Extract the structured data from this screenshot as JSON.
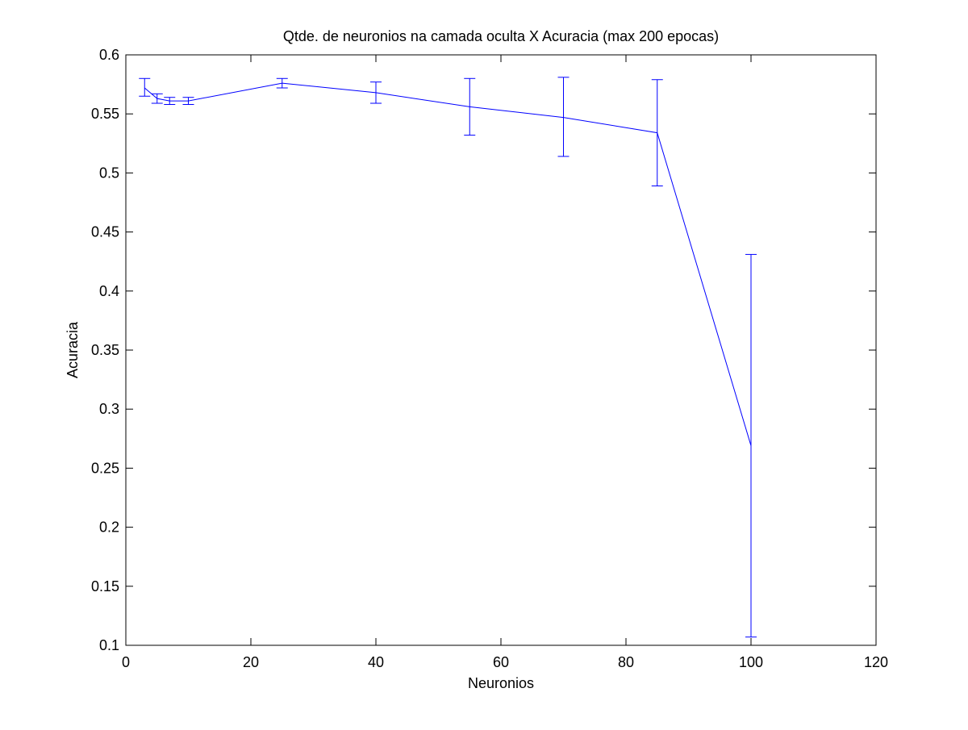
{
  "chart_data": {
    "type": "line",
    "title": "Qtde. de neuronios na camada oculta X Acuracia (max 200 epocas)",
    "xlabel": "Neuronios",
    "ylabel": "Acuracia",
    "xlim": [
      0,
      120
    ],
    "ylim": [
      0.1,
      0.6
    ],
    "xticks": [
      0,
      20,
      40,
      60,
      80,
      100,
      120
    ],
    "yticks": [
      0.1,
      0.15,
      0.2,
      0.25,
      0.3,
      0.35,
      0.4,
      0.45,
      0.5,
      0.55,
      0.6
    ],
    "xtick_labels": [
      "0",
      "20",
      "40",
      "60",
      "80",
      "100",
      "120"
    ],
    "ytick_labels": [
      "0.1",
      "0.15",
      "0.2",
      "0.25",
      "0.3",
      "0.35",
      "0.4",
      "0.45",
      "0.5",
      "0.55",
      "0.6"
    ],
    "grid": false,
    "series": [
      {
        "color": "#0000ff",
        "error_bars": true,
        "points": [
          {
            "x": 3,
            "y": 0.572,
            "lower": 0.565,
            "upper": 0.58
          },
          {
            "x": 5,
            "y": 0.563,
            "lower": 0.559,
            "upper": 0.567
          },
          {
            "x": 7,
            "y": 0.561,
            "lower": 0.558,
            "upper": 0.564
          },
          {
            "x": 10,
            "y": 0.561,
            "lower": 0.558,
            "upper": 0.564
          },
          {
            "x": 25,
            "y": 0.576,
            "lower": 0.572,
            "upper": 0.58
          },
          {
            "x": 40,
            "y": 0.568,
            "lower": 0.559,
            "upper": 0.577
          },
          {
            "x": 55,
            "y": 0.556,
            "lower": 0.532,
            "upper": 0.58
          },
          {
            "x": 70,
            "y": 0.547,
            "lower": 0.514,
            "upper": 0.581
          },
          {
            "x": 85,
            "y": 0.534,
            "lower": 0.489,
            "upper": 0.579
          },
          {
            "x": 100,
            "y": 0.269,
            "lower": 0.107,
            "upper": 0.431
          }
        ]
      }
    ]
  }
}
